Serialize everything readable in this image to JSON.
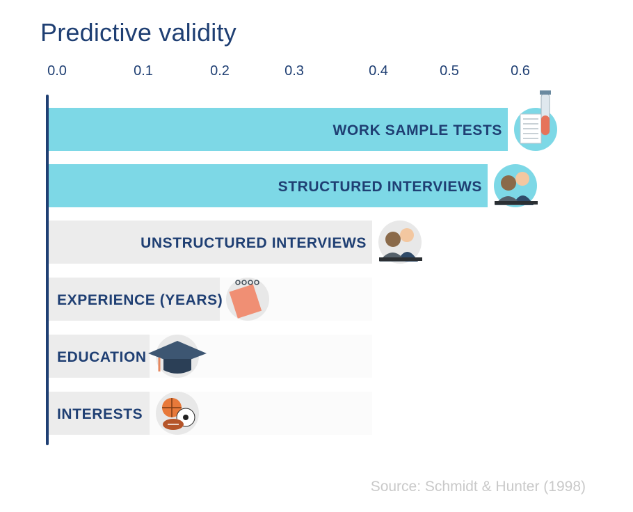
{
  "chart_data": {
    "type": "bar",
    "orientation": "horizontal",
    "title": "Predictive validity",
    "x_ticks": [
      "0.0",
      "0.1",
      "0.2",
      "0.3",
      "0.4",
      "0.5",
      "0.6"
    ],
    "xlim": [
      0,
      0.65
    ],
    "categories": [
      "WORK SAMPLE TESTS",
      "STRUCTURED INTERVIEWS",
      "UNSTRUCTURED INTERVIEWS",
      "EXPERIENCE (YEARS)",
      "EDUCATION",
      "INTERESTS"
    ],
    "values": [
      0.54,
      0.51,
      0.38,
      0.18,
      0.1,
      0.1
    ],
    "highlighted": [
      true,
      true,
      false,
      false,
      false,
      false
    ],
    "icons": [
      "test-tube-document-icon",
      "interview-people-icon",
      "interview-people-icon",
      "calendar-icon",
      "graduation-cap-icon",
      "sports-balls-icon"
    ],
    "colors": {
      "highlight": "#7dd8e6",
      "default": "#ececec",
      "label": "#1f3f73",
      "axis": "#1f3f73"
    },
    "grid": false,
    "legend": "none"
  },
  "footer": {
    "source": "Source: Schmidt & Hunter (1998)"
  }
}
